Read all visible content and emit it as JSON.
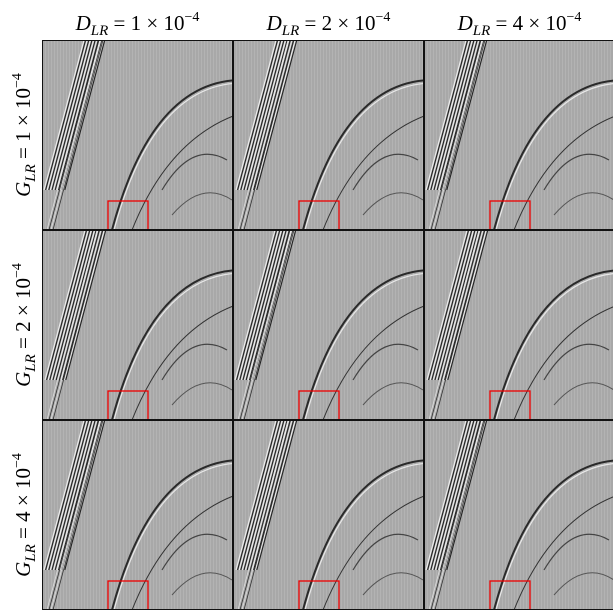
{
  "columns": [
    {
      "symbol": "D",
      "sub": "LR",
      "rest": " = 1 × 10",
      "sup": "−4"
    },
    {
      "symbol": "D",
      "sub": "LR",
      "rest": " = 2 × 10",
      "sup": "−4"
    },
    {
      "symbol": "D",
      "sub": "LR",
      "rest": " = 4 × 10",
      "sup": "−4"
    }
  ],
  "rows": [
    {
      "symbol": "G",
      "sub": "LR",
      "rest": " = 1 × 10",
      "sup": "−4"
    },
    {
      "symbol": "G",
      "sub": "LR",
      "rest": " = 2 × 10",
      "sup": "−4"
    },
    {
      "symbol": "G",
      "sub": "LR",
      "rest": " = 4 × 10",
      "sup": "−4"
    }
  ]
}
